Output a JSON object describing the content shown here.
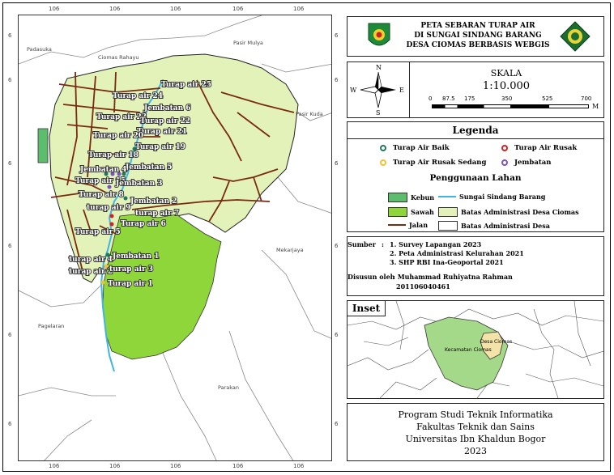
{
  "title": {
    "line1": "PETA SEBARAN TURAP AIR",
    "line2": "DI SUNGAI SINDANG BARANG",
    "line3": "DESA CIOMAS BERBASIS WEBGIS"
  },
  "logos": {
    "left": "regency-emblem",
    "right": "university-emblem"
  },
  "north_arrow": {
    "n": "N",
    "s": "S",
    "e": "E",
    "w": "W"
  },
  "scale": {
    "heading": "SKALA",
    "ratio": "1:10.000",
    "ticks": [
      "0",
      "87.5",
      "175",
      "350",
      "525",
      "700"
    ],
    "unit": "M"
  },
  "legend": {
    "heading": "Legenda",
    "points": [
      {
        "label": "Turap Air Baik",
        "color": "#1e7a5a"
      },
      {
        "label": "Turap Air Rusak",
        "color": "#d62020"
      },
      {
        "label": "Turap Air Rusak Sedang",
        "color": "#f2c230"
      },
      {
        "label": "Jembatan",
        "color": "#7a52c8"
      }
    ],
    "landuse_heading": "Penggunaan Lahan",
    "landuse": [
      {
        "label": "Kebun",
        "color": "#5cbd6c"
      },
      {
        "label": "Sungai Sindang Barang",
        "color": "#3fb4e6"
      },
      {
        "label": "Sawah",
        "color": "#8ed63a"
      },
      {
        "label": "Batas Administrasi Desa Ciomas",
        "color": "#e2f2b8"
      },
      {
        "label": "Jalan",
        "color": "#7a2a10"
      },
      {
        "label": "Batas Administrasi Desa",
        "color": "#ffffff"
      }
    ]
  },
  "source": {
    "label": "Sumber",
    "items": [
      "1. Survey Lapangan 2023",
      "2. Peta Administrasi Kelurahan 2021",
      "3. SHP RBI Ina-Geoportal 2021"
    ],
    "author_label": "Disusun oleh",
    "author_name": ": Muhammad Ruhiyatna Rahman",
    "author_id": "201106040461"
  },
  "inset": {
    "heading": "Inset",
    "labels": [
      "Desa Ciomas",
      "Kecamatan Ciomas"
    ]
  },
  "footer": {
    "line1": "Program Studi Teknik Informatika",
    "line2": "Fakultas Teknik dan Sains",
    "line3": "Universitas Ibn Khaldun Bogor",
    "line4": "2023"
  },
  "map": {
    "grid_top": [
      "106",
      "106",
      "106",
      "106",
      "106"
    ],
    "grid_bottom": [
      "106",
      "106",
      "106",
      "106",
      "106"
    ],
    "grid_left": [
      "6",
      "6",
      "6",
      "6",
      "6",
      "6"
    ],
    "grid_right": [
      "6",
      "6",
      "6",
      "6",
      "6",
      "6"
    ],
    "places": [
      "Padasuka",
      "Ciomas Rahayu",
      "Pasir Mulya",
      "Pasir Kuda",
      "Mekarjaya",
      "Pagelaran",
      "Parakan"
    ],
    "labels": [
      "Turap air 25",
      "Turap air 24",
      "Jembatan 6",
      "Turap air 23",
      "Turap air 22",
      "Turap air 21",
      "Turap air 20",
      "Turap air 19",
      "Turap air 18",
      "Jembatan 5",
      "Jembatan 4",
      "Turap air 15",
      "Jembatan 3",
      "Turap air 8",
      "Jembatan 2",
      "turap air 9",
      "turap air 7",
      "Turap air 6",
      "Turap air 5",
      "turap air 4",
      "Jembatan 1",
      "turap air 2",
      "turap air 3",
      "Turap air 1"
    ]
  }
}
